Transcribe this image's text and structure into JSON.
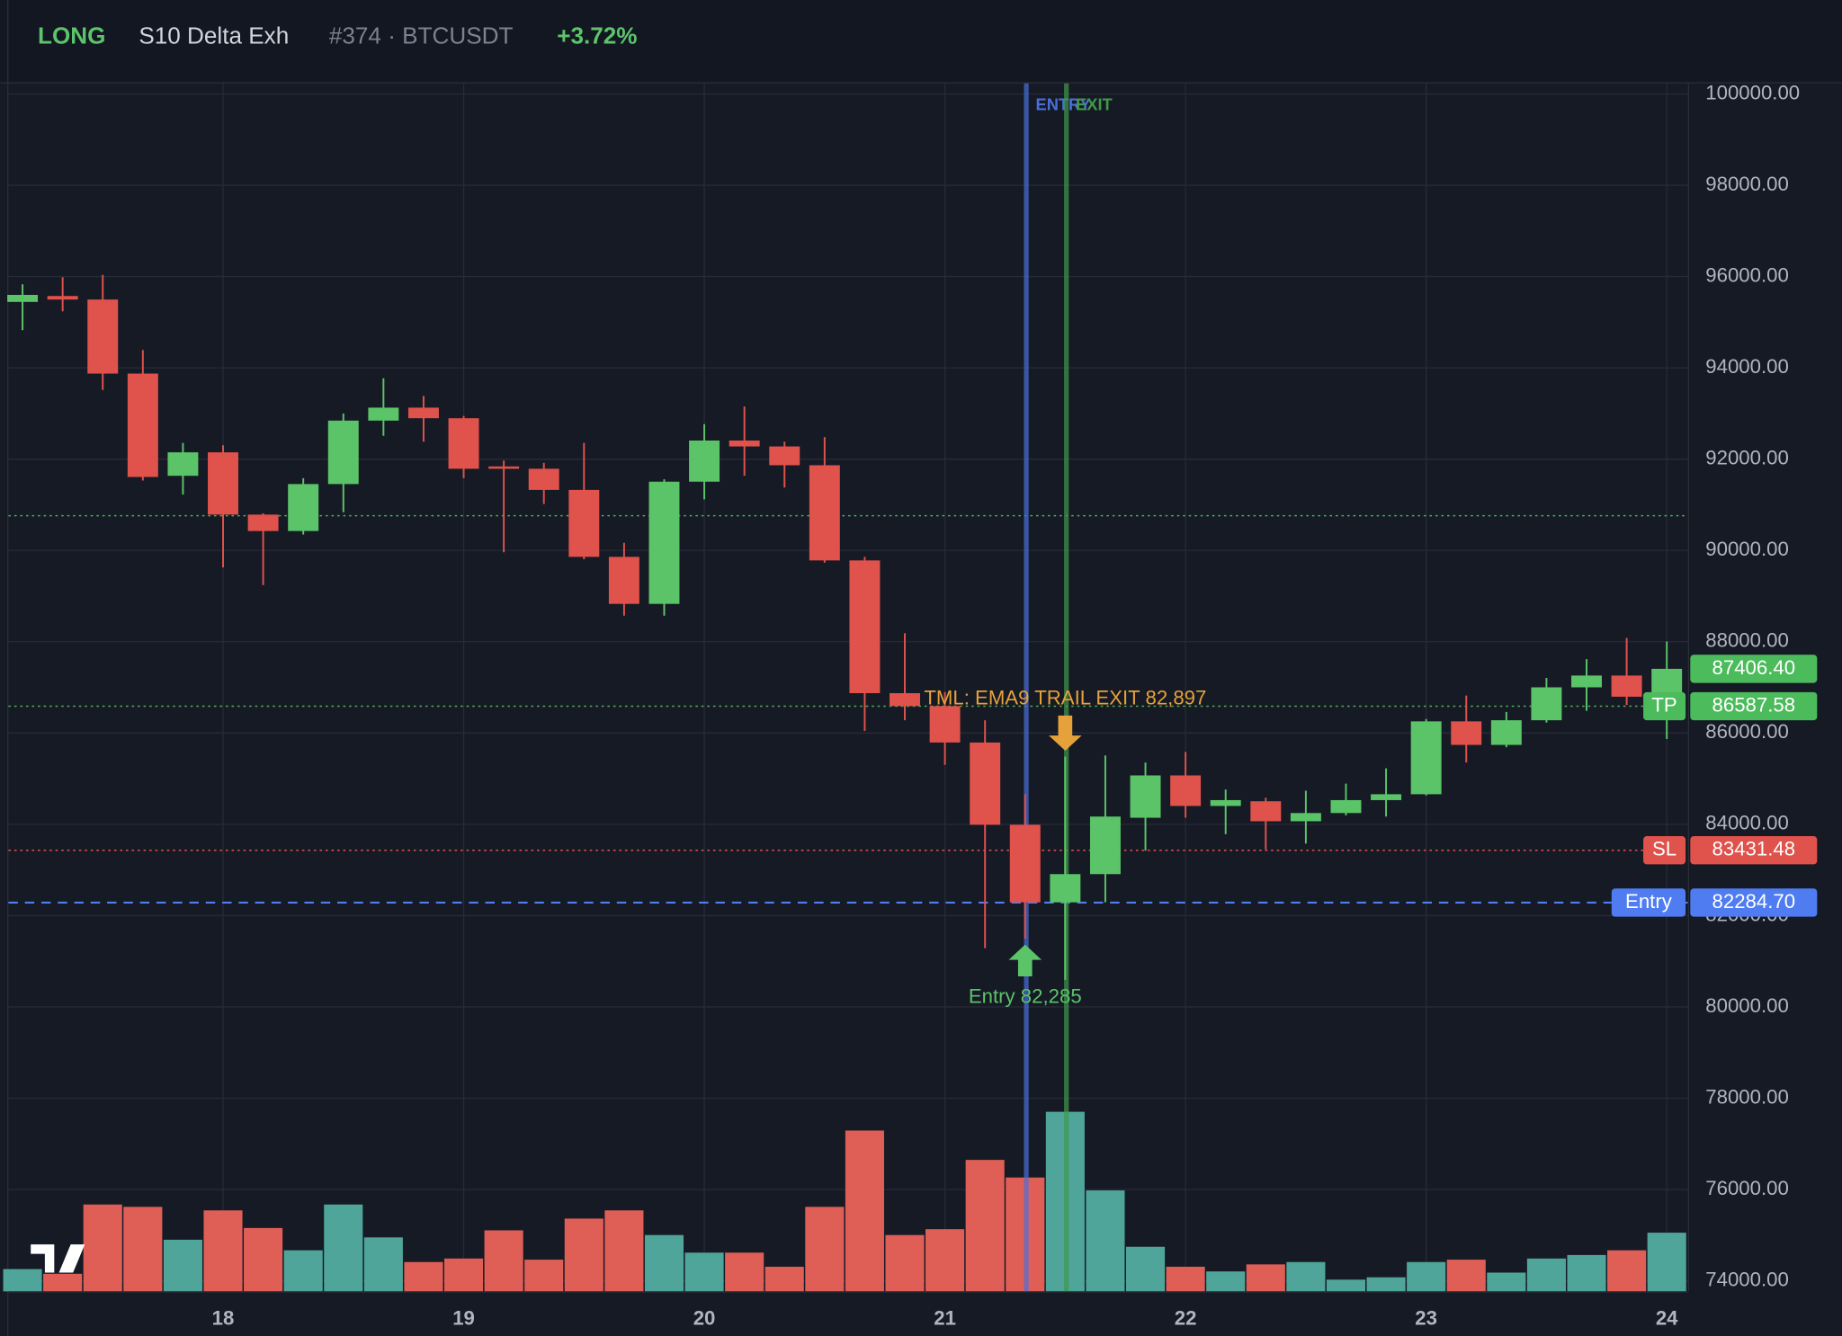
{
  "chart_data": {
    "type": "candlestick",
    "header": {
      "side": "LONG",
      "strategy": "S10 Delta Exh",
      "trade": "#374 · BTCUSDT",
      "pnl": "+3.72%"
    },
    "categories": [
      null,
      null,
      null,
      null,
      null,
      "18",
      null,
      null,
      null,
      null,
      null,
      "19",
      null,
      null,
      null,
      null,
      null,
      "20",
      null,
      null,
      null,
      null,
      null,
      "21",
      null,
      null,
      null,
      null,
      null,
      "22",
      null,
      null,
      null,
      null,
      null,
      "23",
      null,
      null,
      null,
      null,
      null,
      "24"
    ],
    "open": [
      95444,
      95573,
      95496,
      93874,
      91635,
      92149,
      90785,
      90425,
      91454,
      92844,
      93128,
      92896,
      91840,
      91789,
      91326,
      89859,
      88829,
      91506,
      92407,
      92278,
      91866,
      89781,
      86873,
      86590,
      85792,
      83990,
      82291,
      82909,
      84144,
      85071,
      84402,
      84505,
      84067,
      84247,
      84530,
      84659,
      86255,
      85740,
      86280,
      87001,
      87259,
      86795
    ],
    "high": [
      95830,
      95985,
      96036,
      94389,
      92355,
      92304,
      90811,
      91583,
      92999,
      93771,
      93385,
      92947,
      91969,
      91918,
      92355,
      90168,
      91557,
      92767,
      93153,
      92381,
      92484,
      89859,
      88185,
      86898,
      86280,
      84659,
      85483,
      85509,
      85354,
      85586,
      84762,
      84582,
      84736,
      84891,
      85226,
      86306,
      86821,
      86461,
      87207,
      87619,
      88082,
      88005
    ],
    "low": [
      94826,
      95238,
      93514,
      91532,
      91223,
      89627,
      89241,
      90348,
      90837,
      92510,
      92381,
      91583,
      89961,
      91017,
      89807,
      88571,
      88571,
      91120,
      91635,
      91377,
      89730,
      86049,
      86280,
      85303,
      81287,
      81493,
      80592,
      82291,
      83424,
      84144,
      83784,
      83449,
      83578,
      84196,
      84170,
      84633,
      85354,
      85689,
      86229,
      86486,
      86615,
      85869
    ],
    "close": [
      95598,
      95496,
      93874,
      91609,
      92149,
      90785,
      90425,
      91454,
      92844,
      93128,
      92896,
      91789,
      91789,
      91326,
      89859,
      88829,
      91506,
      92407,
      92278,
      91866,
      89781,
      86873,
      86590,
      85792,
      83990,
      82291,
      82909,
      84170,
      85071,
      84402,
      84530,
      84067,
      84247,
      84530,
      84659,
      86255,
      85740,
      86280,
      87001,
      87259,
      86795,
      87406.4
    ],
    "volume": [
      19,
      15,
      74,
      72,
      44,
      69,
      54,
      35,
      74,
      46,
      25,
      28,
      52,
      27,
      62,
      69,
      48,
      33,
      33,
      21,
      72,
      137,
      48,
      53,
      112,
      97,
      153,
      86,
      38,
      21,
      17,
      23,
      25,
      10,
      12,
      25,
      27,
      16,
      28,
      31,
      35,
      50
    ],
    "up_color": "#5bc468",
    "down_color": "#e0524c",
    "volume_up_color": "#4fa59a",
    "volume_down_color": "#df5f57",
    "ylim": [
      73768,
      100232
    ],
    "yticks": [
      {
        "value": 74000,
        "label": "74000.00"
      },
      {
        "value": 76000,
        "label": "76000.00"
      },
      {
        "value": 78000,
        "label": "78000.00"
      },
      {
        "value": 80000,
        "label": "80000.00"
      },
      {
        "value": 82000,
        "label": "82000.00"
      },
      {
        "value": 84000,
        "label": "84000.00"
      },
      {
        "value": 86000,
        "label": "86000.00"
      },
      {
        "value": 88000,
        "label": "88000.00"
      },
      {
        "value": 90000,
        "label": "90000.00"
      },
      {
        "value": 92000,
        "label": "92000.00"
      },
      {
        "value": 94000,
        "label": "94000.00"
      },
      {
        "value": 96000,
        "label": "96000.00"
      },
      {
        "value": 98000,
        "label": "98000.00"
      },
      {
        "value": 100000,
        "label": "100000.00"
      }
    ],
    "grid": true,
    "levels": [
      {
        "value": 90760,
        "color": "#4caf50",
        "dash": "dotted"
      },
      {
        "name": "TP",
        "value": 86587.58,
        "label": "86587.58",
        "color": "#4caf50",
        "tag_color": "#4cbb5c",
        "dash": "dotted"
      },
      {
        "name": "SL",
        "value": 83431.48,
        "label": "83431.48",
        "color": "#e0524c",
        "tag_color": "#e0524c",
        "dash": "dotted"
      },
      {
        "name": "Entry",
        "value": 82284.7,
        "label": "82284.70",
        "color": "#4f7cf0",
        "tag_color": "#4f7cf0",
        "dash": "dashed"
      }
    ],
    "last_price": {
      "value": 87406.4,
      "label": "87406.40",
      "color": "#4cbb5c"
    },
    "vlines": [
      {
        "label": "ENTRY",
        "index": 25,
        "color": "#4a6fd8"
      },
      {
        "label": "EXIT",
        "index": 26,
        "color": "#3f9a4a"
      }
    ],
    "markers": [
      {
        "text": "Entry 82,285",
        "index": 25,
        "position": "below",
        "color": "#5bc468"
      },
      {
        "text": "TML: EMA9 TRAIL EXIT 82,897",
        "index": 26,
        "position": "above",
        "color": "#e6a13a"
      }
    ]
  }
}
